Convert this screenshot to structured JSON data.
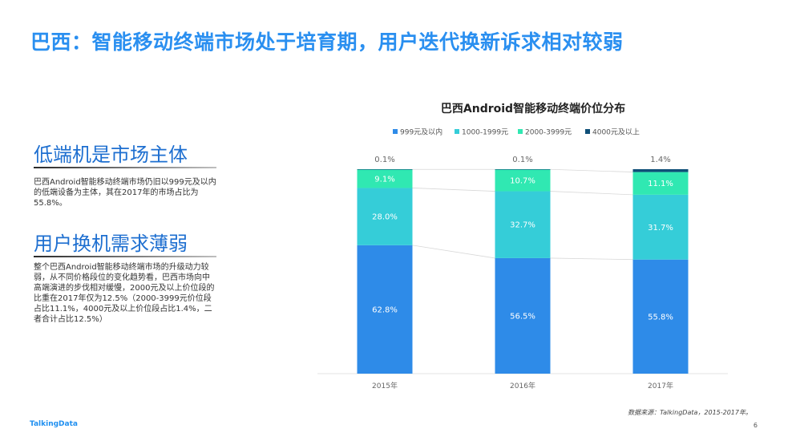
{
  "slide": {
    "title": "巴西：智能移动终端市场处于培育期，用户迭代换新诉求相对较弱",
    "page_number": "6",
    "logo_text": "TalkingData",
    "source": "数据来源：TalkingData，2015-2017年。"
  },
  "left_panel": {
    "heading1": "低端机是市场主体",
    "body1": "巴西Android智能移动终端市场仍旧以999元及以内的低端设备为主体，其在2017年的市场占比为55.8%。",
    "heading2": "用户换机需求薄弱",
    "body2": "整个巴西Android智能移动终端市场的升级动力较弱，从不同价格段位的变化趋势看，巴西市场向中高端演进的步伐相对缓慢，2000元及以上价位段的比重在2017年仅为12.5%（2000-3999元价位段占比11.1%，4000元及以上价位段占比1.4%，二者合计占比12.5%）"
  },
  "colors": {
    "title": "#2a8ff0",
    "series": [
      "#2e8be8",
      "#35cdd8",
      "#30e8b2",
      "#0f4f78"
    ]
  },
  "chart_data": {
    "type": "bar",
    "stacked": true,
    "title": "巴西Android智能移动终端价位分布",
    "categories": [
      "2015年",
      "2016年",
      "2017年"
    ],
    "series": [
      {
        "name": "999元及以内",
        "values": [
          62.8,
          56.5,
          55.8
        ],
        "labels": [
          "62.8%",
          "56.5%",
          "55.8%"
        ]
      },
      {
        "name": "1000-1999元",
        "values": [
          28.0,
          32.7,
          31.7
        ],
        "labels": [
          "28.0%",
          "32.7%",
          "31.7%"
        ]
      },
      {
        "name": "2000-3999元",
        "values": [
          9.1,
          10.7,
          11.1
        ],
        "labels": [
          "9.1%",
          "10.7%",
          "11.1%"
        ]
      },
      {
        "name": "4000元及以上",
        "values": [
          0.1,
          0.1,
          1.4
        ],
        "labels": [
          "0.1%",
          "0.1%",
          "1.4%"
        ]
      }
    ],
    "ylim": [
      0,
      100
    ],
    "legend": "top",
    "grid": false
  }
}
